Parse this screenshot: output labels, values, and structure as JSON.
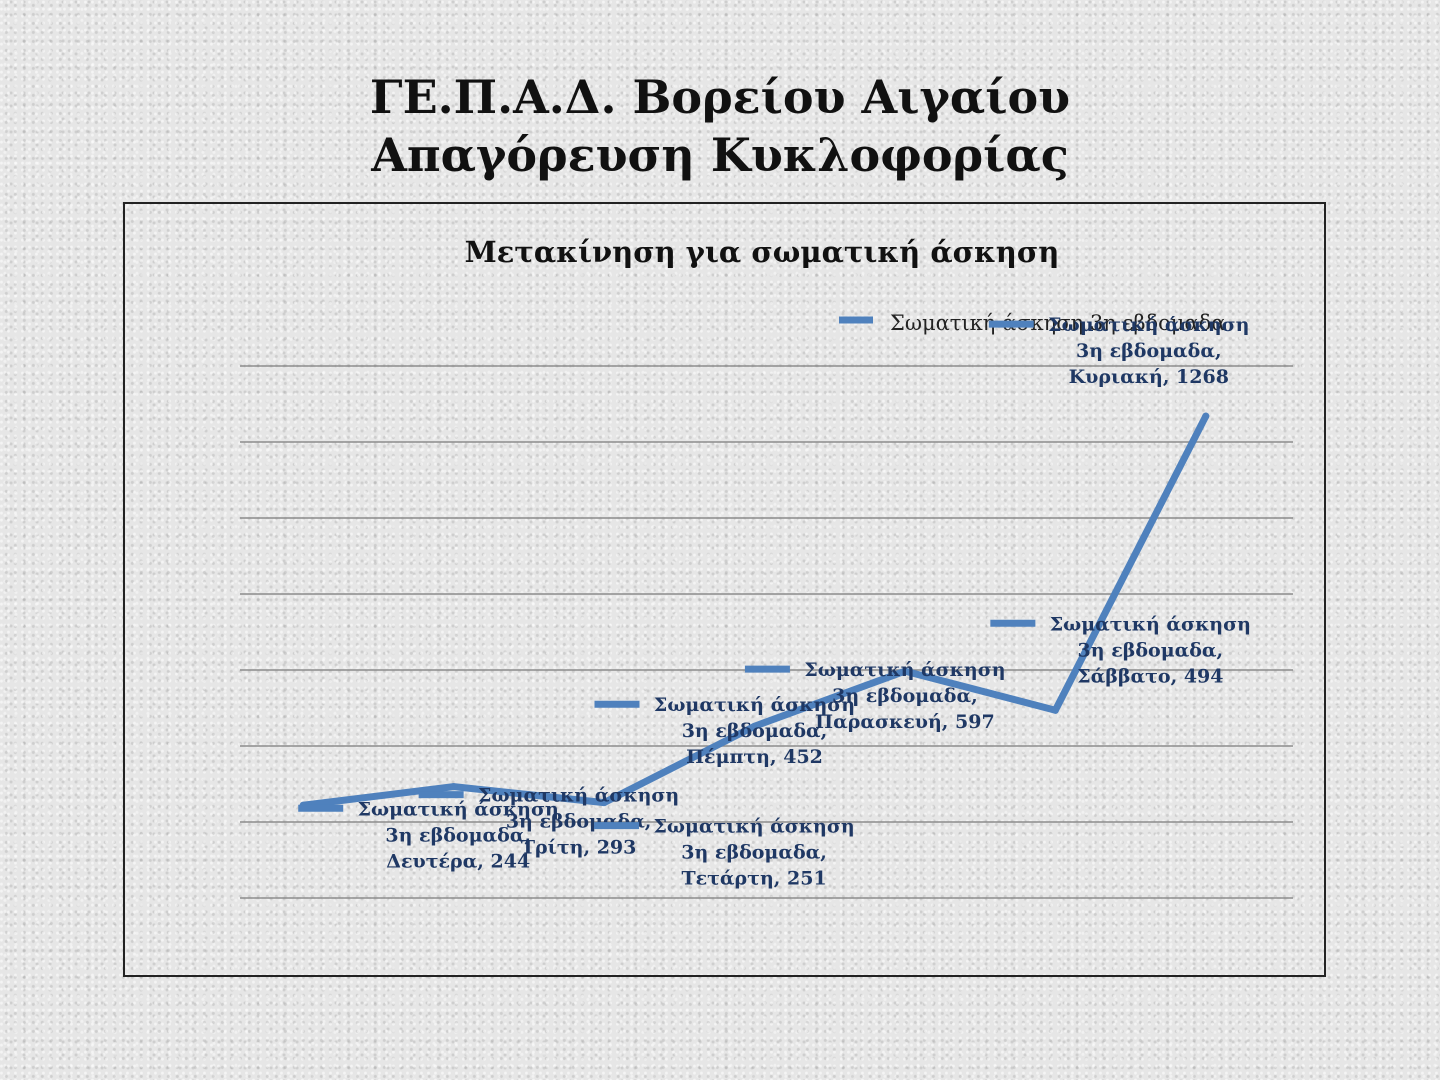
{
  "slide": {
    "title_line1": "ΓΕ.Π.Α.Δ. Βορείου Αιγαίου",
    "title_line2": "Απαγόρευση Κυκλοφορίας"
  },
  "chart_data": {
    "type": "line",
    "title": "Μετακίνηση για σωματική άσκηση",
    "xlabel": "",
    "ylabel": "",
    "categories": [
      "Δευτέρα",
      "Τρίτη",
      "Τετάρτη",
      "Πέμπτη",
      "Παρασκευή",
      "Σάββατο",
      "Κυριακή"
    ],
    "series": [
      {
        "name": "Σωματική άσκηση 3η εβδομαδα",
        "label_series": "Σωματική άσκηση",
        "label_week": "3η εβδομαδα",
        "values": [
          244,
          293,
          251,
          452,
          597,
          494,
          1268
        ],
        "color": "#4f81bd"
      }
    ],
    "legend_position": "top-right",
    "grid": true,
    "ylim": [
      0,
      1400
    ],
    "y_tick_step": 200,
    "axis_labels_visible": false
  }
}
